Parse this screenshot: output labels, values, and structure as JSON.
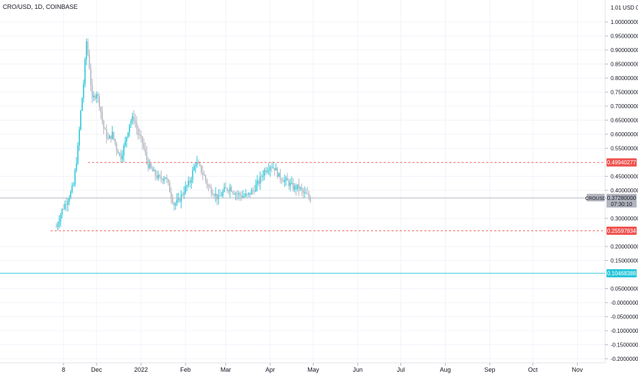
{
  "header": {
    "symbol_title": "CRO/USD, 1D, COINBASE"
  },
  "chart_data": {
    "type": "candlestick",
    "title": "CRO/USD, 1D, COINBASE",
    "y_axis_currency": "USD",
    "ylim": [
      -0.21,
      1.03
    ],
    "y_ticks": [
      {
        "v": 1.0,
        "label": "1.00000000"
      },
      {
        "v": 0.95,
        "label": "0.95000000"
      },
      {
        "v": 0.9,
        "label": "0.90000000"
      },
      {
        "v": 0.85,
        "label": "0.85000000"
      },
      {
        "v": 0.8,
        "label": "0.80000000"
      },
      {
        "v": 0.75,
        "label": "0.75000000"
      },
      {
        "v": 0.7,
        "label": "0.70000000"
      },
      {
        "v": 0.65,
        "label": "0.65000000"
      },
      {
        "v": 0.6,
        "label": "0.60000000"
      },
      {
        "v": 0.55,
        "label": "0.55000000"
      },
      {
        "v": 0.45,
        "label": "0.45000000"
      },
      {
        "v": 0.4,
        "label": "0.40000000"
      },
      {
        "v": 0.3,
        "label": "0.30000000"
      },
      {
        "v": 0.2,
        "label": "0.20000000"
      },
      {
        "v": 0.15,
        "label": "0.15000000"
      },
      {
        "v": 0.05,
        "label": "0.05000000"
      },
      {
        "v": 0.0,
        "label": "-0.00000000"
      },
      {
        "v": -0.05,
        "label": "-0.05000000"
      },
      {
        "v": -0.1,
        "label": "-0.10000000"
      },
      {
        "v": -0.15,
        "label": "-0.15000000"
      },
      {
        "v": -0.2,
        "label": "-0.20000000"
      }
    ],
    "x_ticks": [
      {
        "date": "2021-11-08",
        "label": "8"
      },
      {
        "date": "2021-12-01",
        "label": "Dec"
      },
      {
        "date": "2022-01-01",
        "label": "2022"
      },
      {
        "date": "2022-02-01",
        "label": "Feb"
      },
      {
        "date": "2022-03-01",
        "label": "Mar"
      },
      {
        "date": "2022-04-01",
        "label": "Apr"
      },
      {
        "date": "2022-05-01",
        "label": "May"
      },
      {
        "date": "2022-06-01",
        "label": "Jun"
      },
      {
        "date": "2022-07-01",
        "label": "Jul"
      },
      {
        "date": "2022-08-01",
        "label": "Aug"
      },
      {
        "date": "2022-09-01",
        "label": "Sep"
      },
      {
        "date": "2022-10-01",
        "label": "Oct"
      },
      {
        "date": "2022-11-01",
        "label": "Nov"
      }
    ],
    "series": [
      {
        "kind": "close_path",
        "points": [
          {
            "date": "2021-11-03",
            "close": 0.27
          },
          {
            "date": "2021-11-07",
            "close": 0.33
          },
          {
            "date": "2021-11-10",
            "close": 0.36
          },
          {
            "date": "2021-11-13",
            "close": 0.39
          },
          {
            "date": "2021-11-15",
            "close": 0.42
          },
          {
            "date": "2021-11-18",
            "close": 0.55
          },
          {
            "date": "2021-11-20",
            "close": 0.68
          },
          {
            "date": "2021-11-22",
            "close": 0.78
          },
          {
            "date": "2021-11-24",
            "close": 0.93
          },
          {
            "date": "2021-11-26",
            "close": 0.84
          },
          {
            "date": "2021-11-28",
            "close": 0.72
          },
          {
            "date": "2021-12-01",
            "close": 0.75
          },
          {
            "date": "2021-12-03",
            "close": 0.71
          },
          {
            "date": "2021-12-06",
            "close": 0.62
          },
          {
            "date": "2021-12-09",
            "close": 0.58
          },
          {
            "date": "2021-12-12",
            "close": 0.6
          },
          {
            "date": "2021-12-15",
            "close": 0.55
          },
          {
            "date": "2021-12-18",
            "close": 0.52
          },
          {
            "date": "2021-12-21",
            "close": 0.57
          },
          {
            "date": "2021-12-24",
            "close": 0.64
          },
          {
            "date": "2021-12-27",
            "close": 0.66
          },
          {
            "date": "2021-12-30",
            "close": 0.6
          },
          {
            "date": "2022-01-02",
            "close": 0.57
          },
          {
            "date": "2022-01-06",
            "close": 0.49
          },
          {
            "date": "2022-01-10",
            "close": 0.46
          },
          {
            "date": "2022-01-14",
            "close": 0.44
          },
          {
            "date": "2022-01-18",
            "close": 0.45
          },
          {
            "date": "2022-01-21",
            "close": 0.4
          },
          {
            "date": "2022-01-24",
            "close": 0.35
          },
          {
            "date": "2022-01-27",
            "close": 0.36
          },
          {
            "date": "2022-01-31",
            "close": 0.4
          },
          {
            "date": "2022-02-04",
            "close": 0.43
          },
          {
            "date": "2022-02-08",
            "close": 0.5
          },
          {
            "date": "2022-02-11",
            "close": 0.48
          },
          {
            "date": "2022-02-14",
            "close": 0.45
          },
          {
            "date": "2022-02-17",
            "close": 0.41
          },
          {
            "date": "2022-02-21",
            "close": 0.39
          },
          {
            "date": "2022-02-24",
            "close": 0.37
          },
          {
            "date": "2022-02-28",
            "close": 0.4
          },
          {
            "date": "2022-03-04",
            "close": 0.41
          },
          {
            "date": "2022-03-08",
            "close": 0.39
          },
          {
            "date": "2022-03-12",
            "close": 0.38
          },
          {
            "date": "2022-03-16",
            "close": 0.38
          },
          {
            "date": "2022-03-20",
            "close": 0.4
          },
          {
            "date": "2022-03-24",
            "close": 0.43
          },
          {
            "date": "2022-03-28",
            "close": 0.47
          },
          {
            "date": "2022-04-01",
            "close": 0.49
          },
          {
            "date": "2022-04-04",
            "close": 0.48
          },
          {
            "date": "2022-04-07",
            "close": 0.45
          },
          {
            "date": "2022-04-10",
            "close": 0.44
          },
          {
            "date": "2022-04-13",
            "close": 0.43
          },
          {
            "date": "2022-04-17",
            "close": 0.41
          },
          {
            "date": "2022-04-21",
            "close": 0.41
          },
          {
            "date": "2022-04-24",
            "close": 0.39
          },
          {
            "date": "2022-04-27",
            "close": 0.38
          },
          {
            "date": "2022-04-29",
            "close": 0.37
          }
        ]
      }
    ],
    "horizontal_lines": [
      {
        "value": 0.49940277,
        "label": "0.49940277",
        "color": "#ef5350",
        "style": "dashed",
        "start_date": "2021-11-25"
      },
      {
        "value": 0.25597834,
        "label": "0.25597834",
        "color": "#ef5350",
        "style": "dashed",
        "start_date": "2021-10-30"
      },
      {
        "value": 0.10468388,
        "label": "0.10468388",
        "color": "#26c6da",
        "style": "solid",
        "start_date": "full"
      },
      {
        "value": 0.3728,
        "label": "0.37280000",
        "color": "#b2b5be",
        "style": "solid",
        "start_date": "full"
      }
    ],
    "price_label": {
      "symbol": "CROUSD",
      "price": "0.37280000",
      "countdown": "07:30:10",
      "value": 0.3728
    },
    "axis_top_label": "1.01 USD 00",
    "colors": {
      "candle": "#26c6da",
      "support": "#ef5350",
      "cyan_line": "#26c6da"
    }
  }
}
